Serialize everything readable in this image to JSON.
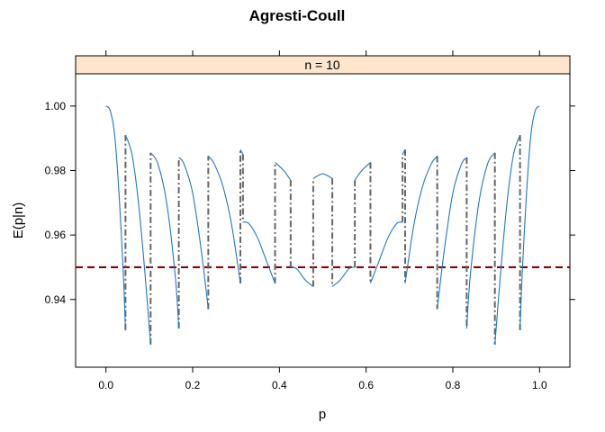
{
  "chart_data": {
    "type": "line",
    "title": "Agresti-Coull",
    "panel_label": "n = 10",
    "xlabel": "p",
    "ylabel": "E(p|n)",
    "xlim": [
      -0.07,
      1.07
    ],
    "ylim": [
      0.919,
      1.01
    ],
    "x_ticks": [
      0.0,
      0.2,
      0.4,
      0.6,
      0.8,
      1.0
    ],
    "x_tick_labels": [
      "0.0",
      "0.2",
      "0.4",
      "0.6",
      "0.8",
      "1.0"
    ],
    "y_ticks": [
      0.94,
      0.96,
      0.98,
      1.0
    ],
    "y_tick_labels": [
      "0.94",
      "0.96",
      "0.98",
      "1.00"
    ],
    "reference_line": {
      "y": 0.95,
      "color": "#8b0000",
      "style": "dashed"
    },
    "colors": {
      "curve": "#1f78c8",
      "jumps": "#666666",
      "strip": "#ffe5cc"
    },
    "coverage_segments": [
      [
        [
          0.0,
          1.0
        ],
        [
          0.01,
          0.9985
        ],
        [
          0.02,
          0.991
        ],
        [
          0.03,
          0.973
        ],
        [
          0.04,
          0.948
        ],
        [
          0.045,
          0.9305
        ]
      ],
      [
        [
          0.045,
          0.991
        ],
        [
          0.06,
          0.985
        ],
        [
          0.075,
          0.97
        ],
        [
          0.09,
          0.948
        ],
        [
          0.103,
          0.926
        ]
      ],
      [
        [
          0.103,
          0.9855
        ],
        [
          0.12,
          0.982
        ],
        [
          0.14,
          0.97
        ],
        [
          0.16,
          0.947
        ],
        [
          0.168,
          0.931
        ]
      ],
      [
        [
          0.168,
          0.984
        ],
        [
          0.18,
          0.982
        ],
        [
          0.2,
          0.973
        ],
        [
          0.22,
          0.955
        ],
        [
          0.236,
          0.937
        ]
      ],
      [
        [
          0.236,
          0.9845
        ],
        [
          0.25,
          0.982
        ],
        [
          0.27,
          0.975
        ],
        [
          0.29,
          0.963
        ],
        [
          0.31,
          0.945
        ]
      ],
      [
        [
          0.31,
          0.9865
        ],
        [
          0.316,
          0.985
        ]
      ],
      [
        [
          0.316,
          0.964
        ],
        [
          0.33,
          0.9635
        ],
        [
          0.35,
          0.959
        ],
        [
          0.37,
          0.952
        ],
        [
          0.39,
          0.945
        ]
      ],
      [
        [
          0.39,
          0.9825
        ],
        [
          0.41,
          0.98
        ],
        [
          0.426,
          0.977
        ]
      ],
      [
        [
          0.426,
          0.95
        ],
        [
          0.44,
          0.9495
        ],
        [
          0.46,
          0.946
        ],
        [
          0.478,
          0.944
        ]
      ],
      [
        [
          0.478,
          0.9775
        ],
        [
          0.49,
          0.9785
        ],
        [
          0.5,
          0.979
        ],
        [
          0.51,
          0.9785
        ],
        [
          0.522,
          0.9775
        ]
      ],
      [
        [
          0.522,
          0.944
        ],
        [
          0.54,
          0.946
        ],
        [
          0.56,
          0.9495
        ],
        [
          0.574,
          0.95
        ]
      ],
      [
        [
          0.574,
          0.977
        ],
        [
          0.59,
          0.98
        ],
        [
          0.61,
          0.9825
        ]
      ],
      [
        [
          0.61,
          0.945
        ],
        [
          0.63,
          0.952
        ],
        [
          0.65,
          0.959
        ],
        [
          0.67,
          0.9635
        ],
        [
          0.684,
          0.964
        ]
      ],
      [
        [
          0.684,
          0.985
        ],
        [
          0.69,
          0.9865
        ]
      ],
      [
        [
          0.69,
          0.945
        ],
        [
          0.71,
          0.963
        ],
        [
          0.73,
          0.975
        ],
        [
          0.75,
          0.982
        ],
        [
          0.764,
          0.9845
        ]
      ],
      [
        [
          0.764,
          0.937
        ],
        [
          0.78,
          0.955
        ],
        [
          0.8,
          0.973
        ],
        [
          0.82,
          0.982
        ],
        [
          0.832,
          0.984
        ]
      ],
      [
        [
          0.832,
          0.931
        ],
        [
          0.84,
          0.947
        ],
        [
          0.86,
          0.97
        ],
        [
          0.88,
          0.982
        ],
        [
          0.897,
          0.9855
        ]
      ],
      [
        [
          0.897,
          0.926
        ],
        [
          0.91,
          0.948
        ],
        [
          0.925,
          0.97
        ],
        [
          0.94,
          0.985
        ],
        [
          0.955,
          0.991
        ]
      ],
      [
        [
          0.955,
          0.9305
        ],
        [
          0.96,
          0.948
        ],
        [
          0.97,
          0.973
        ],
        [
          0.98,
          0.991
        ],
        [
          0.99,
          0.9985
        ],
        [
          1.0,
          1.0
        ]
      ]
    ],
    "jumps": [
      [
        0.045,
        0.9305,
        0.991
      ],
      [
        0.103,
        0.926,
        0.9855
      ],
      [
        0.168,
        0.931,
        0.984
      ],
      [
        0.236,
        0.937,
        0.9845
      ],
      [
        0.31,
        0.945,
        0.9865
      ],
      [
        0.316,
        0.985,
        0.964
      ],
      [
        0.39,
        0.945,
        0.9825
      ],
      [
        0.426,
        0.977,
        0.95
      ],
      [
        0.478,
        0.944,
        0.9775
      ],
      [
        0.522,
        0.9775,
        0.944
      ],
      [
        0.574,
        0.95,
        0.977
      ],
      [
        0.61,
        0.9825,
        0.945
      ],
      [
        0.684,
        0.964,
        0.985
      ],
      [
        0.69,
        0.9865,
        0.945
      ],
      [
        0.764,
        0.9845,
        0.937
      ],
      [
        0.832,
        0.984,
        0.931
      ],
      [
        0.897,
        0.9855,
        0.926
      ],
      [
        0.955,
        0.991,
        0.9305
      ]
    ]
  }
}
